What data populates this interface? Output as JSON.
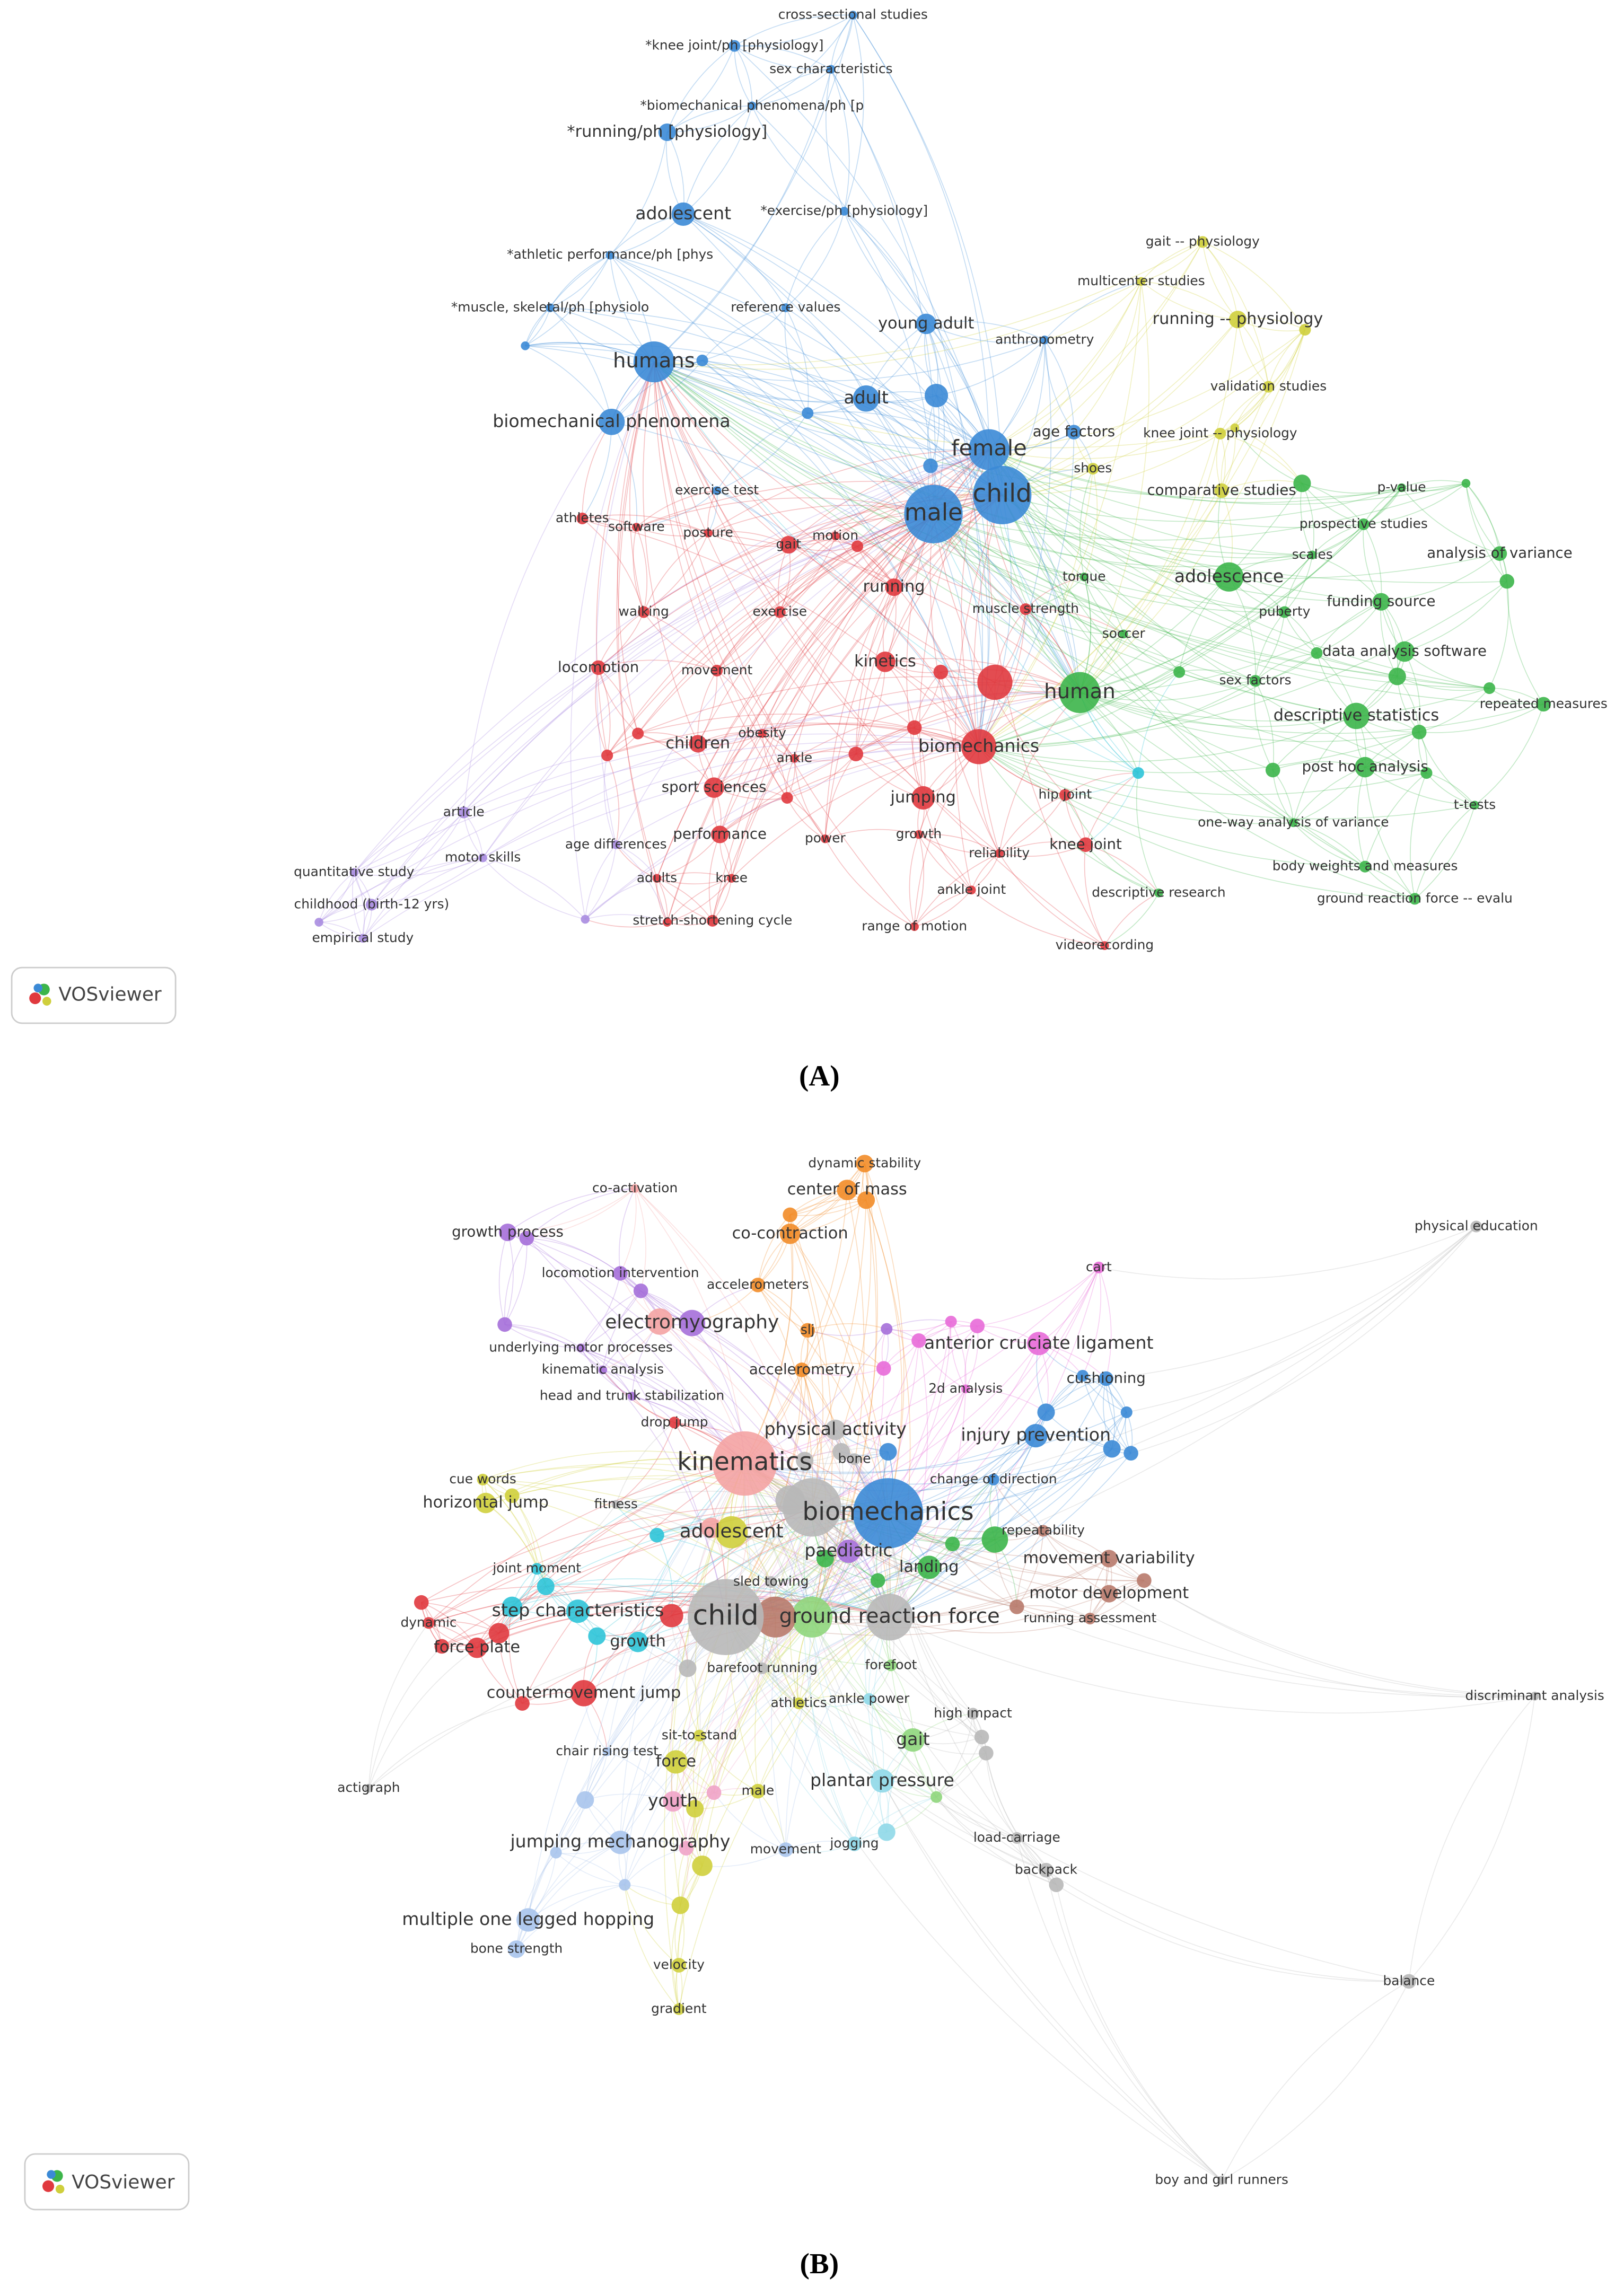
{
  "panels": [
    {
      "caption": "(A)",
      "logo": "VOSviewer",
      "nodes": [
        "cross-sectional studies",
        "*knee joint/ph [physiology]",
        "sex characteristics",
        "*biomechanical phenomena/ph [p",
        "*running/ph [physiology]",
        "adolescent",
        "*exercise/ph [physiology]",
        "*athletic performance/ph [phys",
        "gait -- physiology",
        "multicenter studies",
        "*muscle, skeletal/ph [physiolo",
        "reference values",
        "young adult",
        "running -- physiology",
        "anthropometry",
        "humans",
        "validation studies",
        "adult",
        "age factors",
        "knee joint -- physiology",
        "biomechanical phenomena",
        "female",
        "shoes",
        "child",
        "comparative studies",
        "p-value",
        "exercise test",
        "male",
        "prospective studies",
        "athletes",
        "software",
        "posture",
        "gait",
        "motion",
        "analysis of variance",
        "scales",
        "torque",
        "adolescence",
        "running",
        "funding source",
        "puberty",
        "muscle strength",
        "walking",
        "exercise",
        "soccer",
        "data analysis software",
        "kinetics",
        "locomotion",
        "movement",
        "human",
        "sex factors",
        "repeated measures",
        "descriptive statistics",
        "obesity",
        "children",
        "biomechanics",
        "post hoc analysis",
        "ankle",
        "sport sciences",
        "jumping",
        "hip joint",
        "t-tests",
        "article",
        "one-way analysis of variance",
        "performance",
        "power",
        "growth",
        "knee joint",
        "age differences",
        "motor skills",
        "reliability",
        "quantitative study",
        "body weights and measures",
        "adults",
        "knee",
        "ankle joint",
        "descriptive research",
        "childhood (birth-12 yrs)",
        "ground reaction force -- evalu",
        "stretch-shortening cycle",
        "range of motion",
        "empirical study",
        "videorecording"
      ]
    },
    {
      "caption": "(B)",
      "logo": "VOSviewer",
      "nodes": [
        "dynamic stability",
        "center of mass",
        "co-activation",
        "physical education",
        "growth process",
        "co-contraction",
        "cart",
        "locomotion intervention",
        "accelerometers",
        "electromyography",
        "slj",
        "anterior cruciate ligament",
        "underlying motor processes",
        "kinematic analysis",
        "cushioning",
        "accelerometry",
        "2d analysis",
        "head and trunk stabilization",
        "drop jump",
        "physical activity",
        "injury prevention",
        "bone",
        "kinematics",
        "cue words",
        "change of direction",
        "horizontal jump",
        "fitness",
        "biomechanics",
        "repeatability",
        "adolescent",
        "paediatric",
        "movement variability",
        "joint moment",
        "landing",
        "sled towing",
        "motor development",
        "step characteristics",
        "child",
        "ground reaction force",
        "dynamic",
        "running assessment",
        "growth",
        "force plate",
        "barefoot running",
        "forefoot",
        "countermovement jump",
        "discriminant analysis",
        "athletics",
        "ankle power",
        "high impact",
        "sit-to-stand",
        "gait",
        "chair rising test",
        "force",
        "actigraph",
        "male",
        "plantar pressure",
        "youth",
        "load-carriage",
        "jumping mechanography",
        "movement",
        "jogging",
        "backpack",
        "multiple one legged hopping",
        "bone strength",
        "velocity",
        "balance",
        "gradient",
        "boy and girl runners"
      ]
    }
  ]
}
